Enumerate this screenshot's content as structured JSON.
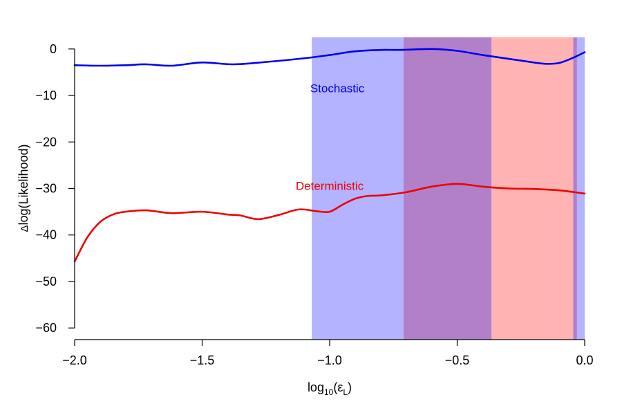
{
  "chart_data": {
    "type": "line",
    "xlabel": {
      "main": "log",
      "sub": "10",
      "paren_open": "(ε",
      "sub2": "L",
      "paren_close": ")"
    },
    "ylabel": {
      "delta": "Δ",
      "rest": "log(Likelihood)"
    },
    "xlim": [
      -2.0,
      0.0
    ],
    "ylim": [
      -62.5,
      2.5
    ],
    "xticks": [
      -2.0,
      -1.5,
      -1.0,
      -0.5,
      0.0
    ],
    "xtick_labels": [
      "−2.0",
      "−1.5",
      "−1.0",
      "−0.5",
      "0.0"
    ],
    "yticks": [
      0,
      -10,
      -20,
      -30,
      -40,
      -50,
      -60
    ],
    "ytick_labels": [
      "0",
      "−10",
      "−20",
      "−30",
      "−40",
      "−50",
      "−60"
    ],
    "grid": false,
    "regions": [
      {
        "name": "blue",
        "x0": -1.07,
        "x1": -0.71,
        "color": "#b3b3ff"
      },
      {
        "name": "purple",
        "x0": -0.71,
        "x1": -0.365,
        "color": "#b27fc9"
      },
      {
        "name": "pink",
        "x0": -0.365,
        "x1": -0.045,
        "color": "#ffb3b3"
      },
      {
        "name": "purple-thin",
        "x0": -0.045,
        "x1": -0.03,
        "color": "#b27fc9"
      },
      {
        "name": "blue-edge",
        "x0": -0.03,
        "x1": 0.0,
        "color": "#b3b3ff"
      }
    ],
    "series": [
      {
        "name": "Stochastic",
        "color": "#0000ee",
        "label_x": -0.97,
        "label_y": -9.3,
        "x": [
          -2.0,
          -1.9,
          -1.8,
          -1.72,
          -1.62,
          -1.5,
          -1.38,
          -1.25,
          -1.1,
          -1.0,
          -0.9,
          -0.8,
          -0.72,
          -0.6,
          -0.5,
          -0.4,
          -0.3,
          -0.2,
          -0.15,
          -0.1,
          -0.05,
          0.0
        ],
        "y": [
          -3.5,
          -3.6,
          -3.5,
          -3.3,
          -3.6,
          -2.9,
          -3.3,
          -2.8,
          -2.0,
          -1.3,
          -0.5,
          -0.2,
          -0.2,
          0.0,
          -0.4,
          -1.3,
          -2.1,
          -2.9,
          -3.2,
          -3.0,
          -2.0,
          -0.7
        ]
      },
      {
        "name": "Deterministic",
        "color": "#ee0000",
        "label_x": -1.0,
        "label_y": -30.3,
        "x": [
          -2.0,
          -1.95,
          -1.9,
          -1.85,
          -1.8,
          -1.72,
          -1.62,
          -1.5,
          -1.4,
          -1.35,
          -1.28,
          -1.2,
          -1.12,
          -1.05,
          -1.0,
          -0.95,
          -0.9,
          -0.85,
          -0.8,
          -0.7,
          -0.6,
          -0.5,
          -0.4,
          -0.3,
          -0.2,
          -0.1,
          0.0
        ],
        "y": [
          -45.7,
          -40.5,
          -37.2,
          -35.6,
          -35.0,
          -34.7,
          -35.3,
          -35.0,
          -35.6,
          -35.8,
          -36.6,
          -35.7,
          -34.5,
          -34.9,
          -35.0,
          -33.5,
          -32.2,
          -31.6,
          -31.5,
          -30.8,
          -29.6,
          -29.0,
          -29.6,
          -30.0,
          -30.1,
          -30.4,
          -31.1
        ]
      }
    ]
  }
}
